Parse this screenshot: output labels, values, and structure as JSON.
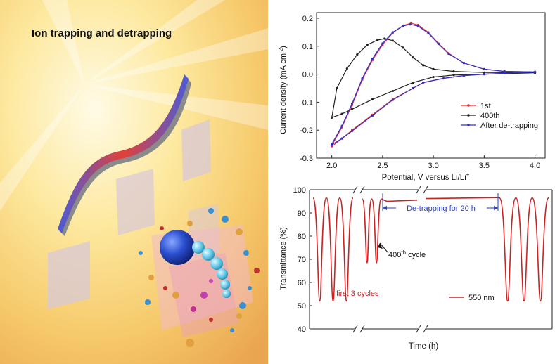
{
  "illustration": {
    "title": "Ion trapping and detrapping"
  },
  "chart_data": [
    {
      "type": "line",
      "xlabel": "Potential, V versus Li/Li",
      "xlabel_sup": "+",
      "ylabel": "Current density (mA cm",
      "ylabel_sup": "-2",
      "ylabel_end": ")",
      "xlim": [
        1.85,
        4.1
      ],
      "ylim": [
        -0.3,
        0.22
      ],
      "x_ticks": [
        2.0,
        2.5,
        3.0,
        3.5,
        4.0
      ],
      "y_ticks": [
        -0.3,
        -0.2,
        -0.1,
        0.0,
        0.1,
        0.2
      ],
      "x_tick_labels": [
        "2.0",
        "2.5",
        "3.0",
        "3.5",
        "4.0"
      ],
      "y_tick_labels": [
        "-0.3",
        "-0.2",
        "-0.1",
        "0.0",
        "0.1",
        "0.2"
      ],
      "legend_position": "lower-right",
      "grid": false,
      "series": [
        {
          "name": "1st",
          "color": "#e03030",
          "anodic": [
            [
              2.0,
              -0.255
            ],
            [
              2.1,
              -0.19
            ],
            [
              2.2,
              -0.11
            ],
            [
              2.3,
              -0.02
            ],
            [
              2.4,
              0.05
            ],
            [
              2.5,
              0.105
            ],
            [
              2.6,
              0.148
            ],
            [
              2.7,
              0.174
            ],
            [
              2.78,
              0.182
            ],
            [
              2.85,
              0.176
            ],
            [
              2.95,
              0.15
            ],
            [
              3.05,
              0.11
            ],
            [
              3.15,
              0.075
            ],
            [
              3.3,
              0.04
            ],
            [
              3.5,
              0.018
            ],
            [
              3.7,
              0.01
            ],
            [
              4.0,
              0.008
            ]
          ],
          "cathodic": [
            [
              4.0,
              0.008
            ],
            [
              3.7,
              0.003
            ],
            [
              3.5,
              0.0
            ],
            [
              3.3,
              -0.005
            ],
            [
              3.1,
              -0.015
            ],
            [
              2.9,
              -0.03
            ],
            [
              2.8,
              -0.05
            ],
            [
              2.6,
              -0.09
            ],
            [
              2.4,
              -0.145
            ],
            [
              2.2,
              -0.2
            ],
            [
              2.1,
              -0.23
            ],
            [
              2.0,
              -0.258
            ]
          ]
        },
        {
          "name": "400th",
          "color": "#222222",
          "anodic": [
            [
              2.0,
              -0.155
            ],
            [
              2.05,
              -0.05
            ],
            [
              2.15,
              0.02
            ],
            [
              2.25,
              0.07
            ],
            [
              2.35,
              0.105
            ],
            [
              2.45,
              0.122
            ],
            [
              2.52,
              0.127
            ],
            [
              2.6,
              0.12
            ],
            [
              2.7,
              0.095
            ],
            [
              2.8,
              0.06
            ],
            [
              2.9,
              0.032
            ],
            [
              3.0,
              0.018
            ],
            [
              3.2,
              0.01
            ],
            [
              3.5,
              0.006
            ],
            [
              4.0,
              0.005
            ]
          ],
          "cathodic": [
            [
              4.0,
              0.005
            ],
            [
              3.5,
              0.0
            ],
            [
              3.2,
              -0.003
            ],
            [
              3.0,
              -0.01
            ],
            [
              2.8,
              -0.03
            ],
            [
              2.6,
              -0.06
            ],
            [
              2.4,
              -0.09
            ],
            [
              2.2,
              -0.125
            ],
            [
              2.1,
              -0.142
            ],
            [
              2.0,
              -0.155
            ]
          ]
        },
        {
          "name": "After de-trapping",
          "color": "#3030c8",
          "anodic": [
            [
              2.0,
              -0.25
            ],
            [
              2.1,
              -0.185
            ],
            [
              2.2,
              -0.105
            ],
            [
              2.3,
              -0.015
            ],
            [
              2.4,
              0.055
            ],
            [
              2.5,
              0.11
            ],
            [
              2.6,
              0.15
            ],
            [
              2.7,
              0.172
            ],
            [
              2.77,
              0.178
            ],
            [
              2.85,
              0.172
            ],
            [
              2.95,
              0.147
            ],
            [
              3.05,
              0.108
            ],
            [
              3.15,
              0.073
            ],
            [
              3.3,
              0.04
            ],
            [
              3.5,
              0.018
            ],
            [
              3.7,
              0.01
            ],
            [
              4.0,
              0.008
            ]
          ],
          "cathodic": [
            [
              4.0,
              0.008
            ],
            [
              3.7,
              0.003
            ],
            [
              3.5,
              0.0
            ],
            [
              3.3,
              -0.005
            ],
            [
              3.1,
              -0.015
            ],
            [
              2.9,
              -0.03
            ],
            [
              2.8,
              -0.05
            ],
            [
              2.6,
              -0.092
            ],
            [
              2.4,
              -0.148
            ],
            [
              2.2,
              -0.203
            ],
            [
              2.1,
              -0.23
            ],
            [
              2.0,
              -0.252
            ]
          ]
        }
      ]
    },
    {
      "type": "line",
      "xlabel": "Time (h)",
      "ylabel": "Transmittance (%)",
      "ylim": [
        40,
        100
      ],
      "y_ticks": [
        40,
        50,
        60,
        70,
        80,
        90,
        100
      ],
      "y_tick_labels": [
        "40",
        "50",
        "60",
        "70",
        "80",
        "90",
        "100"
      ],
      "x_axis_breaks": 2,
      "grid": false,
      "series": [
        {
          "name": "550 nm",
          "color": "#cc2222",
          "segments": [
            {
              "cycles": 3,
              "min": 52,
              "max": 96.5
            },
            {
              "cycles": 2,
              "min": 68.5,
              "max": 96,
              "then_plateau": [
                95,
                95.5
              ]
            },
            {
              "plateau": [
                96.2,
                96.6
              ]
            },
            {
              "cycles": 3,
              "min": 52,
              "max": 96.5
            }
          ]
        }
      ],
      "annotations": {
        "first_cycles": "first 3 cycles",
        "cycle_400_num": "400",
        "cycle_400_sup": "th",
        "cycle_400_suffix": " cycle",
        "detrapping": "De-trapping for 20 h"
      }
    }
  ],
  "colors": {
    "curve_red": "#cc2222",
    "annotation_blue": "#2a3fbf"
  }
}
